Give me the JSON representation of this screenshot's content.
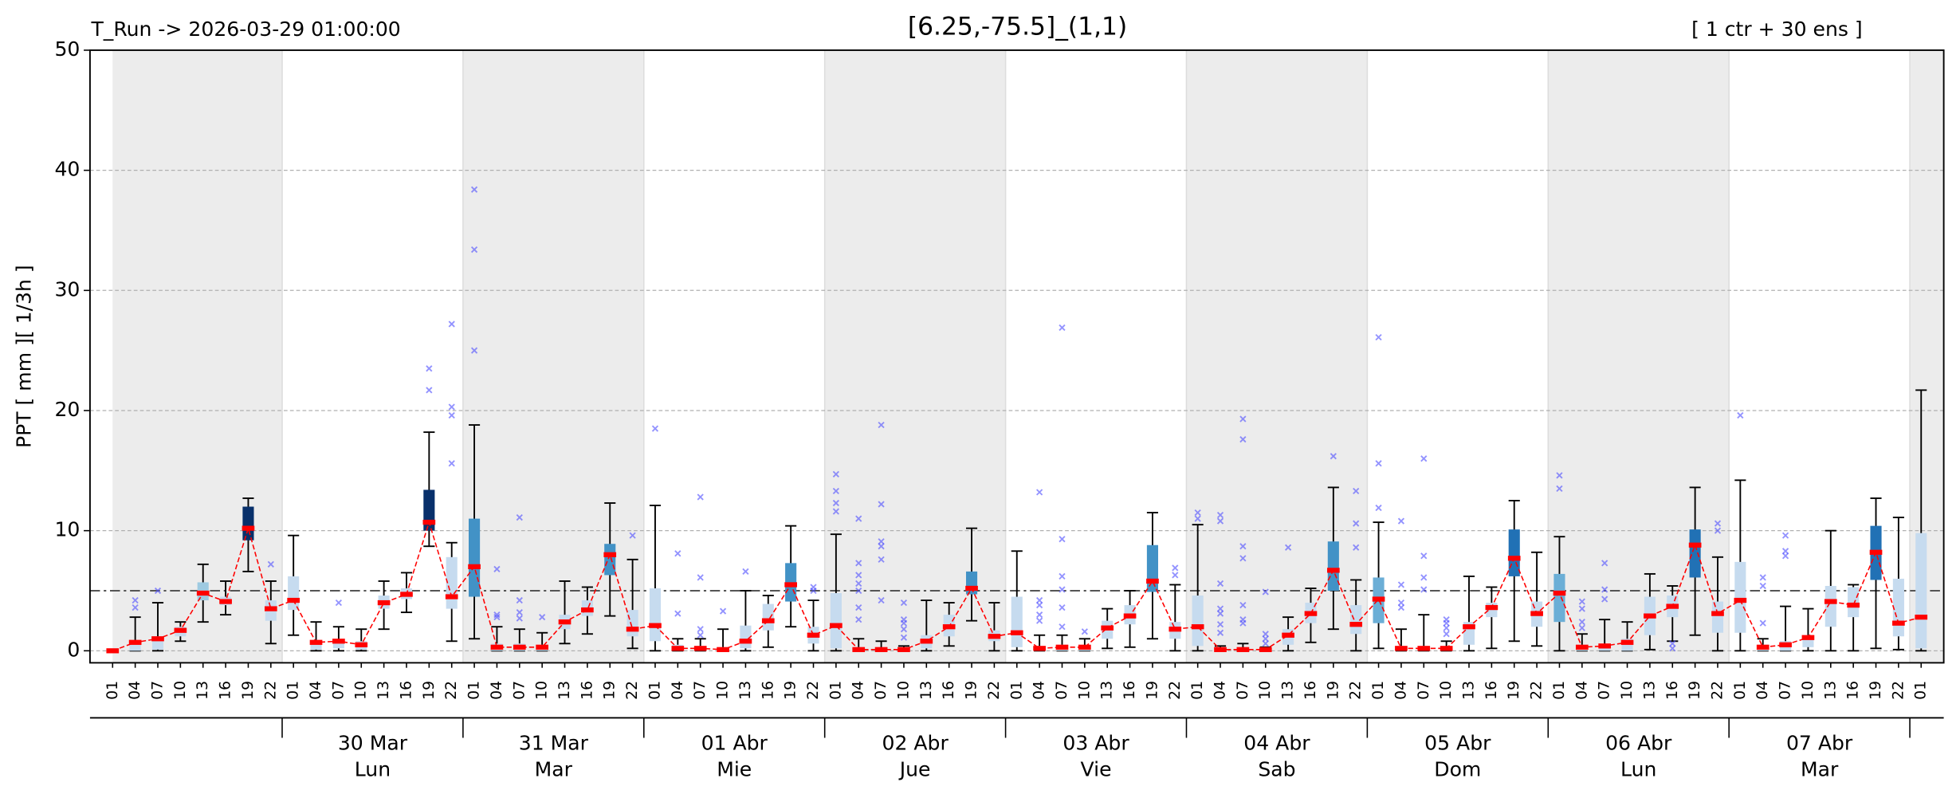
{
  "chart_data": {
    "type": "box",
    "title": "[6.25,-75.5]_(1,1)",
    "run_label": "T_Run -> 2026-03-29  01:00:00",
    "ensemble_label": "[ 1 ctr + 30 ens ]",
    "ylabel": "PPT  [ mm ][ 1/3h ]",
    "categories": [
      "01",
      "04",
      "07",
      "10",
      "13",
      "16",
      "19",
      "22",
      "01",
      "04",
      "07",
      "10",
      "13",
      "16",
      "19",
      "22",
      "01",
      "04",
      "07",
      "10",
      "13",
      "16",
      "19",
      "22",
      "01",
      "04",
      "07",
      "10",
      "13",
      "16",
      "19",
      "22",
      "01",
      "04",
      "07",
      "10",
      "13",
      "16",
      "19",
      "22",
      "01",
      "04",
      "07",
      "10",
      "13",
      "16",
      "19",
      "22",
      "01",
      "04",
      "07",
      "10",
      "13",
      "16",
      "19",
      "22",
      "01",
      "04",
      "07",
      "10",
      "13",
      "16",
      "19",
      "22",
      "01",
      "04",
      "07",
      "10",
      "13",
      "16",
      "19",
      "22",
      "01",
      "04",
      "07",
      "10",
      "13",
      "16",
      "19",
      "22",
      "01"
    ],
    "day_labels": [
      {
        "date": "30 Mar",
        "weekday": "Lun"
      },
      {
        "date": "31 Mar",
        "weekday": "Mar"
      },
      {
        "date": "01 Abr",
        "weekday": "Mie"
      },
      {
        "date": "02 Abr",
        "weekday": "Jue"
      },
      {
        "date": "03 Abr",
        "weekday": "Vie"
      },
      {
        "date": "04 Abr",
        "weekday": "Sab"
      },
      {
        "date": "05 Abr",
        "weekday": "Dom"
      },
      {
        "date": "06 Abr",
        "weekday": "Lun"
      },
      {
        "date": "07 Abr",
        "weekday": "Mar"
      }
    ],
    "whislo": [
      0,
      0,
      0,
      0.8,
      2.4,
      3.0,
      6.6,
      0.6,
      1.3,
      0,
      0,
      0,
      1.8,
      3.2,
      8.7,
      0.8,
      1.0,
      0,
      0,
      0,
      0.6,
      1.4,
      2.9,
      0.2,
      0,
      0,
      0,
      0,
      0,
      0.3,
      2.0,
      0,
      0,
      0,
      0,
      0,
      0,
      0.4,
      2.5,
      0,
      0,
      0,
      0,
      0,
      0.2,
      0.3,
      1.0,
      0,
      0,
      0,
      0,
      0,
      0,
      0.7,
      1.8,
      0,
      0.2,
      0,
      0,
      0,
      0,
      0.2,
      0.8,
      0.4,
      0,
      0,
      0,
      0,
      0.1,
      0.8,
      1.3,
      0,
      0,
      0,
      0,
      0,
      0,
      0,
      0.2,
      0.1,
      0
    ],
    "q1": [
      0,
      0,
      0.1,
      1.2,
      4.2,
      3.8,
      9.2,
      2.5,
      3.4,
      0.1,
      0.2,
      0.1,
      3.5,
      4.3,
      10.0,
      3.5,
      4.5,
      0,
      0,
      0,
      1.8,
      2.9,
      6.3,
      1.2,
      0.8,
      0,
      0,
      0,
      0.2,
      1.7,
      4.1,
      0.6,
      0.2,
      0,
      0,
      0,
      0.2,
      1.2,
      4.7,
      0.8,
      0.3,
      0,
      0,
      0,
      1.0,
      2.2,
      4.9,
      1.0,
      0.4,
      0,
      0,
      0,
      0.5,
      2.3,
      5.0,
      1.4,
      2.3,
      0,
      0,
      0,
      0.5,
      2.8,
      6.2,
      2.0,
      2.4,
      0,
      0,
      0,
      1.3,
      2.8,
      6.1,
      1.5,
      1.5,
      0,
      0,
      0.3,
      2.0,
      2.8,
      5.9,
      1.2,
      0.2
    ],
    "median": [
      0,
      0.7,
      1.0,
      1.7,
      4.8,
      4.1,
      10.2,
      3.5,
      4.2,
      0.7,
      0.8,
      0.5,
      4.0,
      4.7,
      10.7,
      4.5,
      7.0,
      0.3,
      0.3,
      0.3,
      2.4,
      3.4,
      8.0,
      1.8,
      2.1,
      0.2,
      0.2,
      0.1,
      0.8,
      2.5,
      5.5,
      1.3,
      2.1,
      0.1,
      0.1,
      0.1,
      0.8,
      2.0,
      5.2,
      1.2,
      1.5,
      0.2,
      0.3,
      0.3,
      1.9,
      2.9,
      5.8,
      1.8,
      2.0,
      0.1,
      0.1,
      0.1,
      1.3,
      3.1,
      6.7,
      2.2,
      4.3,
      0.2,
      0.2,
      0.2,
      2.0,
      3.6,
      7.7,
      3.1,
      4.8,
      0.3,
      0.4,
      0.7,
      2.9,
      3.7,
      8.8,
      3.1,
      4.2,
      0.3,
      0.5,
      1.1,
      4.1,
      3.8,
      8.2,
      2.3,
      2.8
    ],
    "q3": [
      0,
      0.8,
      1.2,
      2.0,
      5.7,
      4.5,
      12.0,
      4.2,
      6.2,
      0.9,
      0.9,
      0.8,
      4.6,
      5.2,
      13.4,
      7.8,
      11.0,
      0.6,
      0.6,
      0.5,
      3.0,
      4.2,
      8.9,
      3.4,
      5.2,
      0.5,
      0.4,
      0.3,
      2.1,
      3.9,
      7.3,
      2.0,
      4.8,
      0.3,
      0.2,
      0.1,
      1.3,
      3.0,
      6.6,
      1.7,
      4.5,
      0.4,
      0.5,
      0.4,
      2.5,
      3.8,
      8.8,
      2.4,
      4.6,
      0.1,
      0.2,
      0.1,
      1.8,
      4.0,
      9.1,
      3.8,
      6.1,
      0.4,
      0.4,
      0.3,
      2.4,
      4.0,
      10.1,
      4.1,
      6.4,
      0.5,
      0.5,
      1.0,
      4.5,
      4.6,
      10.1,
      4.1,
      7.4,
      0.5,
      0.8,
      1.3,
      5.4,
      5.3,
      10.4,
      6.0,
      9.8
    ],
    "whishi": [
      0,
      2.8,
      4.0,
      2.4,
      7.2,
      5.8,
      12.7,
      5.8,
      9.6,
      2.4,
      2.0,
      1.8,
      5.8,
      6.5,
      18.2,
      9.0,
      18.8,
      2.0,
      1.8,
      1.5,
      5.8,
      5.3,
      12.3,
      7.6,
      12.1,
      1.0,
      1.0,
      1.8,
      5.0,
      4.6,
      10.4,
      4.2,
      9.7,
      1.0,
      0.8,
      0.4,
      4.2,
      4.0,
      10.2,
      4.0,
      8.3,
      1.3,
      1.3,
      1.0,
      3.5,
      5.0,
      11.5,
      5.5,
      10.5,
      0.4,
      0.6,
      0.3,
      2.8,
      5.2,
      13.6,
      5.9,
      10.7,
      1.8,
      3.0,
      0.8,
      6.2,
      5.3,
      12.5,
      8.2,
      9.5,
      1.4,
      2.6,
      2.4,
      6.4,
      5.4,
      13.6,
      7.8,
      14.2,
      1.0,
      3.7,
      3.5,
      10.0,
      5.5,
      12.7,
      11.1,
      21.7
    ],
    "outliers": [
      [],
      [
        3.6,
        4.2
      ],
      [
        5.0
      ],
      [],
      [],
      [],
      [],
      [
        7.2
      ],
      [],
      [],
      [
        4.0
      ],
      [],
      [],
      [],
      [
        21.7,
        23.5
      ],
      [
        15.6,
        19.6,
        20.3,
        27.2
      ],
      [
        25.0,
        33.4,
        38.4
      ],
      [
        2.8,
        3.0,
        6.8
      ],
      [
        2.7,
        3.2,
        4.2,
        11.1
      ],
      [
        2.8
      ],
      [],
      [],
      [],
      [
        9.6
      ],
      [
        18.5
      ],
      [
        3.1,
        8.1
      ],
      [
        1.3,
        1.8,
        6.1,
        12.8
      ],
      [
        3.3
      ],
      [
        6.6
      ],
      [],
      [],
      [
        5.0,
        5.3
      ],
      [
        11.6,
        12.3,
        13.3,
        14.7
      ],
      [
        2.6,
        3.6,
        5.0,
        5.6,
        6.3,
        7.3,
        11.0
      ],
      [
        4.2,
        7.6,
        8.7,
        9.1,
        12.2,
        18.8
      ],
      [
        1.1,
        1.8,
        2.3,
        2.6,
        4.0
      ],
      [],
      [],
      [],
      [],
      [],
      [
        2.5,
        3.0,
        3.8,
        4.2,
        13.2
      ],
      [
        2.0,
        3.6,
        5.1,
        6.2,
        9.3,
        26.9
      ],
      [
        1.6
      ],
      [],
      [],
      [],
      [
        6.3,
        6.9
      ],
      [
        11.0,
        11.5
      ],
      [
        1.5,
        2.2,
        3.1,
        3.5,
        5.6,
        10.8,
        11.3
      ],
      [
        2.3,
        2.6,
        3.8,
        7.7,
        8.7,
        17.6,
        19.3
      ],
      [
        0.6,
        1.0,
        1.4,
        4.9
      ],
      [
        8.6
      ],
      [],
      [
        16.2
      ],
      [
        8.6,
        10.6,
        13.3
      ],
      [
        11.9,
        15.6,
        26.1
      ],
      [
        3.6,
        4.0,
        5.5,
        10.8
      ],
      [
        5.1,
        6.1,
        7.9,
        16.0
      ],
      [
        1.4,
        1.9,
        2.3,
        2.6
      ],
      [],
      [],
      [],
      [],
      [
        13.5,
        14.6
      ],
      [
        1.9,
        2.4,
        3.5,
        4.1
      ],
      [
        4.3,
        5.1,
        7.3
      ],
      [],
      [],
      [
        0.2,
        0.6
      ],
      [],
      [
        10.0,
        10.6
      ],
      [
        19.6
      ],
      [
        2.3,
        5.4,
        6.1
      ],
      [
        7.9,
        8.3,
        9.6
      ],
      [],
      [],
      [],
      [],
      [],
      []
    ],
    "box_colors": [
      "#c6dbef",
      "#c6dbef",
      "#c6dbef",
      "#c6dbef",
      "#9ecae1",
      "#c6dbef",
      "#08306b",
      "#c6dbef",
      "#c6dbef",
      "#c6dbef",
      "#c6dbef",
      "#c6dbef",
      "#c6dbef",
      "#c6dbef",
      "#08306b",
      "#c6dbef",
      "#4292c6",
      "#c6dbef",
      "#c6dbef",
      "#c6dbef",
      "#c6dbef",
      "#c6dbef",
      "#4292c6",
      "#c6dbef",
      "#c6dbef",
      "#c6dbef",
      "#c6dbef",
      "#c6dbef",
      "#c6dbef",
      "#c6dbef",
      "#4292c6",
      "#c6dbef",
      "#c6dbef",
      "#c6dbef",
      "#c6dbef",
      "#c6dbef",
      "#c6dbef",
      "#c6dbef",
      "#4292c6",
      "#c6dbef",
      "#c6dbef",
      "#c6dbef",
      "#c6dbef",
      "#c6dbef",
      "#c6dbef",
      "#c6dbef",
      "#4292c6",
      "#c6dbef",
      "#c6dbef",
      "#c6dbef",
      "#c6dbef",
      "#c6dbef",
      "#c6dbef",
      "#c6dbef",
      "#4292c6",
      "#c6dbef",
      "#6baed6",
      "#c6dbef",
      "#c6dbef",
      "#c6dbef",
      "#c6dbef",
      "#c6dbef",
      "#2171b5",
      "#c6dbef",
      "#6baed6",
      "#c6dbef",
      "#c6dbef",
      "#c6dbef",
      "#c6dbef",
      "#c6dbef",
      "#2171b5",
      "#c6dbef",
      "#c6dbef",
      "#c6dbef",
      "#c6dbef",
      "#c6dbef",
      "#c6dbef",
      "#c6dbef",
      "#2171b5",
      "#c6dbef",
      "#c6dbef"
    ],
    "median_color": "#ff0000",
    "outlier_color": "#4d4dff",
    "label_color": "#ff0000",
    "reference_line": 5,
    "ylim": [
      -1,
      50
    ],
    "yticks": [
      0,
      10,
      20,
      30,
      40,
      50
    ],
    "grid": true
  }
}
